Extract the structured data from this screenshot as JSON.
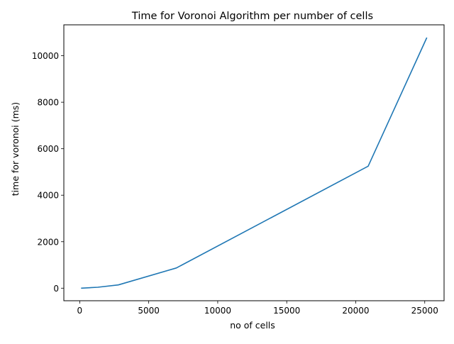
{
  "chart_data": {
    "type": "line",
    "title": "Time for Voronoi Algorithm per number of cells",
    "xlabel": "no of cells",
    "ylabel": "time for voronoi (ms)",
    "xlim": [
      -1150,
      26400
    ],
    "ylim": [
      -540,
      11330
    ],
    "xticks": [
      0,
      5000,
      10000,
      15000,
      20000,
      25000
    ],
    "xtick_labels": [
      "0",
      "5000",
      "10000",
      "15000",
      "20000",
      "25000"
    ],
    "yticks": [
      0,
      2000,
      4000,
      6000,
      8000,
      10000
    ],
    "ytick_labels": [
      "0",
      "2000",
      "4000",
      "6000",
      "8000",
      "10000"
    ],
    "grid": false,
    "series": [
      {
        "color": "#1f77b4",
        "x": [
          100,
          1300,
          2800,
          7000,
          20900,
          25150
        ],
        "y": [
          0,
          40,
          140,
          870,
          5250,
          10780
        ]
      }
    ]
  }
}
